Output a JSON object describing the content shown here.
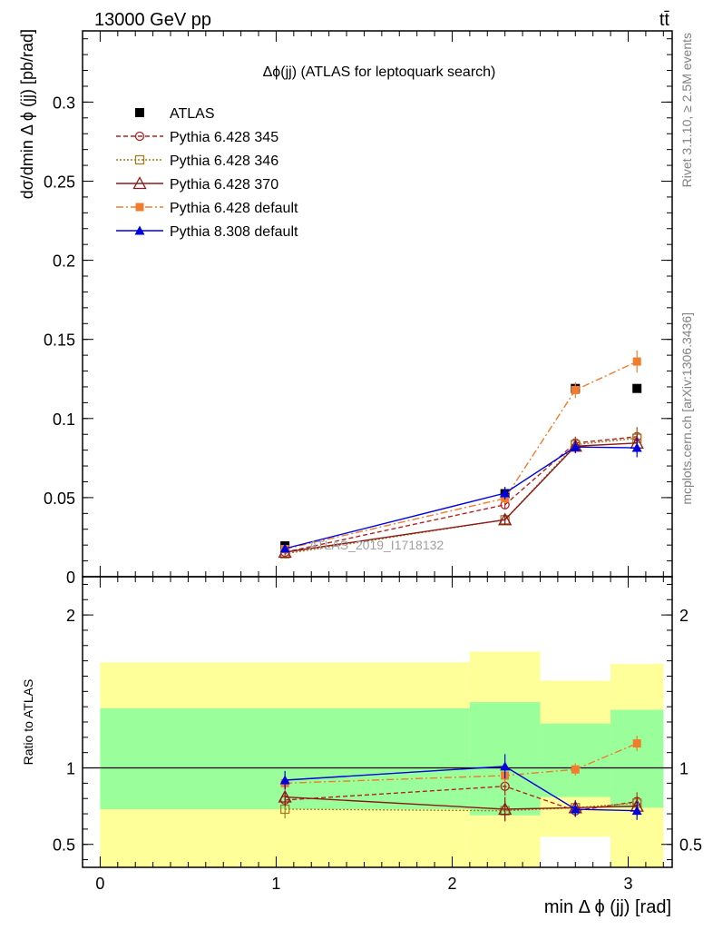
{
  "header": {
    "energy_label": "13000 GeV pp",
    "process_label": "tt̄"
  },
  "side_labels": {
    "rivet": "Rivet 3.1.10, ≥ 2.5M events",
    "mcplots": "mcplots.cern.ch [arXiv:1306.3436]"
  },
  "chart_data": [
    {
      "type": "scatter",
      "title": "Δϕ(jj) (ATLAS for leptoquark search)",
      "watermark": "ATLAS_2019_I1718132",
      "xlabel": "min Δ ϕ (jj) [rad]",
      "ylabel": "dσ/dmin Δ ϕ (jj) [pb/rad]",
      "xlim": [
        -0.1,
        3.25
      ],
      "ylim": [
        0,
        0.345
      ],
      "yticks": [
        "0",
        "0.05",
        "0.1",
        "0.15",
        "0.2",
        "0.25",
        "0.3"
      ],
      "legend_position": "top-left",
      "series": [
        {
          "name": "ATLAS",
          "color": "#000000",
          "marker": "square",
          "dash": "none",
          "x": [
            1.05,
            2.3,
            2.7,
            3.05
          ],
          "y": [
            0.0195,
            0.0525,
            0.119,
            0.119
          ],
          "err": [
            0.0,
            0.0,
            0.0,
            0.0
          ]
        },
        {
          "name": "Pythia 6.428 345",
          "color": "#b22222",
          "marker": "circle-open",
          "dash": "5,3",
          "x": [
            1.05,
            2.3,
            2.7,
            3.05
          ],
          "y": [
            0.0155,
            0.0455,
            0.0845,
            0.0885
          ],
          "err": [
            0.0015,
            0.003,
            0.004,
            0.006
          ]
        },
        {
          "name": "Pythia 6.428 346",
          "color": "#a67c1f",
          "marker": "square-open",
          "dash": "2,2",
          "x": [
            1.05,
            2.3,
            2.7,
            3.05
          ],
          "y": [
            0.0145,
            0.036,
            0.0835,
            0.0875
          ],
          "err": [
            0.0015,
            0.003,
            0.004,
            0.006
          ]
        },
        {
          "name": "Pythia 6.428 370",
          "color": "#8b1a1a",
          "marker": "triangle-open",
          "dash": "none",
          "x": [
            1.05,
            2.3,
            2.7,
            3.05
          ],
          "y": [
            0.0155,
            0.036,
            0.0825,
            0.0845
          ],
          "err": [
            0.0015,
            0.003,
            0.004,
            0.006
          ]
        },
        {
          "name": "Pythia 6.428 default",
          "color": "#f07c2e",
          "marker": "square",
          "dash": "8,3,2,3",
          "x": [
            1.05,
            2.3,
            2.7,
            3.05
          ],
          "y": [
            0.0175,
            0.0495,
            0.118,
            0.136
          ],
          "err": [
            0.0015,
            0.003,
            0.005,
            0.007
          ]
        },
        {
          "name": "Pythia 8.308 default",
          "color": "#0000dd",
          "marker": "triangle",
          "dash": "none",
          "x": [
            1.05,
            2.3,
            2.7,
            3.05
          ],
          "y": [
            0.0178,
            0.0528,
            0.082,
            0.0815
          ],
          "err": [
            0.0015,
            0.004,
            0.004,
            0.006
          ]
        }
      ]
    },
    {
      "type": "scatter",
      "ylabel": "Ratio to ATLAS",
      "xlim": [
        -0.1,
        3.25
      ],
      "ylim": [
        0.35,
        2.25
      ],
      "xticks": [
        "0",
        "1",
        "2",
        "3"
      ],
      "yticks": [
        "0.5",
        "1",
        "2"
      ],
      "reference_line": 1.0,
      "bands": [
        {
          "x": [
            0.0,
            2.1
          ],
          "inner": [
            0.73,
            1.39
          ],
          "outer": [
            0.35,
            1.69
          ]
        },
        {
          "x": [
            2.1,
            2.5
          ],
          "inner": [
            0.69,
            1.43
          ],
          "outer": [
            0.35,
            1.76
          ]
        },
        {
          "x": [
            2.5,
            2.9
          ],
          "inner": [
            0.81,
            1.29
          ],
          "outer": [
            0.55,
            1.57
          ]
        },
        {
          "x": [
            2.9,
            3.2
          ],
          "inner": [
            0.74,
            1.38
          ],
          "outer": [
            0.35,
            1.68
          ]
        }
      ],
      "series": [
        {
          "name": "Pythia 6.428 345",
          "x": [
            1.05,
            2.3,
            2.7,
            3.05
          ],
          "y": [
            0.79,
            0.88,
            0.72,
            0.78
          ],
          "err": [
            0.05,
            0.06,
            0.04,
            0.06
          ]
        },
        {
          "name": "Pythia 6.428 346",
          "x": [
            1.05,
            2.3,
            2.7,
            3.05
          ],
          "y": [
            0.73,
            0.72,
            0.74,
            0.77
          ],
          "err": [
            0.06,
            0.06,
            0.04,
            0.06
          ]
        },
        {
          "name": "Pythia 6.428 370",
          "x": [
            1.05,
            2.3,
            2.7,
            3.05
          ],
          "y": [
            0.81,
            0.73,
            0.74,
            0.75
          ],
          "err": [
            0.06,
            0.08,
            0.05,
            0.06
          ]
        },
        {
          "name": "Pythia 6.428 default",
          "x": [
            1.05,
            2.3,
            2.7,
            3.05
          ],
          "y": [
            0.9,
            0.95,
            0.99,
            1.16
          ],
          "err": [
            0.05,
            0.06,
            0.04,
            0.05
          ]
        },
        {
          "name": "Pythia 8.308 default",
          "x": [
            1.05,
            2.3,
            2.7,
            3.05
          ],
          "y": [
            0.92,
            1.01,
            0.73,
            0.72
          ],
          "err": [
            0.06,
            0.08,
            0.05,
            0.06
          ]
        }
      ]
    }
  ]
}
